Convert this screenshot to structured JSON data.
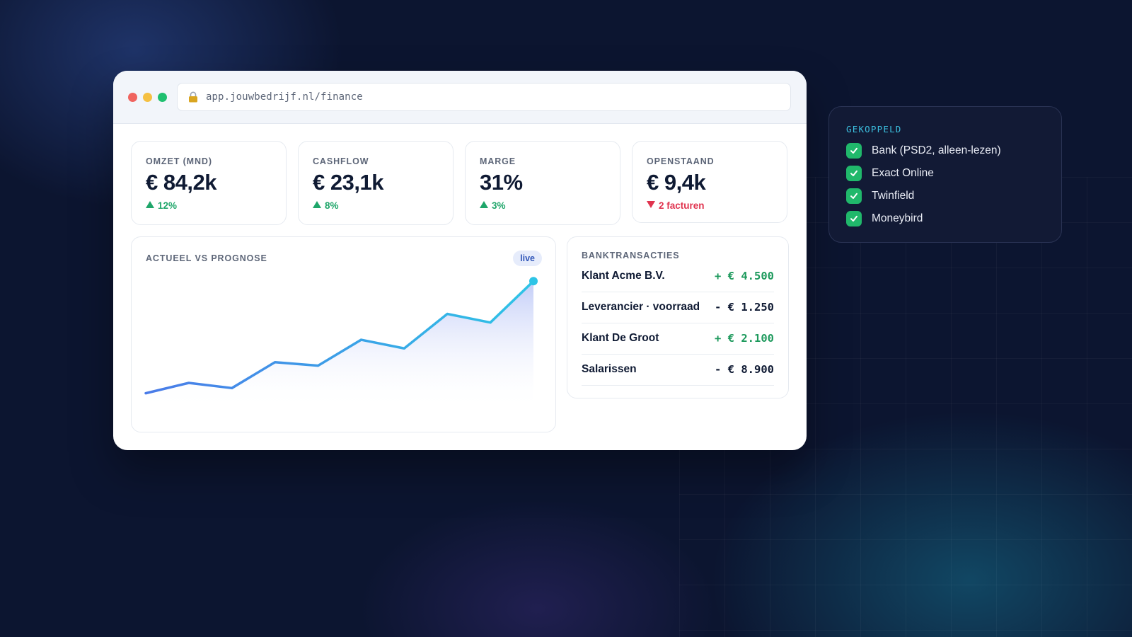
{
  "browser": {
    "url": "app.jouwbedrijf.nl/finance"
  },
  "kpis": [
    {
      "label": "OMZET (MND)",
      "value": "€ 84,2k",
      "delta": "12%",
      "trend": "up"
    },
    {
      "label": "CASHFLOW",
      "value": "€ 23,1k",
      "delta": "8%",
      "trend": "up"
    },
    {
      "label": "MARGE",
      "value": "31%",
      "delta": "3%",
      "trend": "up"
    },
    {
      "label": "OPENSTAAND",
      "value": "€ 9,4k",
      "delta": "2 facturen",
      "trend": "down"
    }
  ],
  "chart": {
    "title": "ACTUEEL VS PROGNOSE",
    "badge": "live"
  },
  "chart_data": {
    "type": "area",
    "title": "ACTUEEL VS PROGNOSE",
    "x": [
      1,
      2,
      3,
      4,
      5,
      6,
      7,
      8,
      9,
      10
    ],
    "series": [
      {
        "values": [
          10,
          16,
          13,
          28,
          26,
          41,
          36,
          56,
          51,
          75
        ]
      }
    ],
    "ylim": [
      0,
      80
    ],
    "grid": false,
    "axes_visible": false
  },
  "transactions": {
    "title": "BANKTRANSACTIES",
    "rows": [
      {
        "name": "Klant Acme B.V.",
        "amount": "+ € 4.500",
        "type": "pos"
      },
      {
        "name": "Leverancier · voorraad",
        "amount": "- € 1.250",
        "type": "neg"
      },
      {
        "name": "Klant De Groot",
        "amount": "+ € 2.100",
        "type": "pos"
      },
      {
        "name": "Salarissen",
        "amount": "- € 8.900",
        "type": "neg"
      }
    ]
  },
  "connections": {
    "title": "GEKOPPELD",
    "items": [
      {
        "label": "Bank (PSD2, alleen-lezen)"
      },
      {
        "label": "Exact Online"
      },
      {
        "label": "Twinfield"
      },
      {
        "label": "Moneybird"
      }
    ]
  },
  "colors": {
    "background": "#0c1530",
    "accent_line_start": "#4a7be8",
    "accent_line_end": "#2ec4e6",
    "positive": "#1fa66a",
    "negative": "#e0344f"
  }
}
